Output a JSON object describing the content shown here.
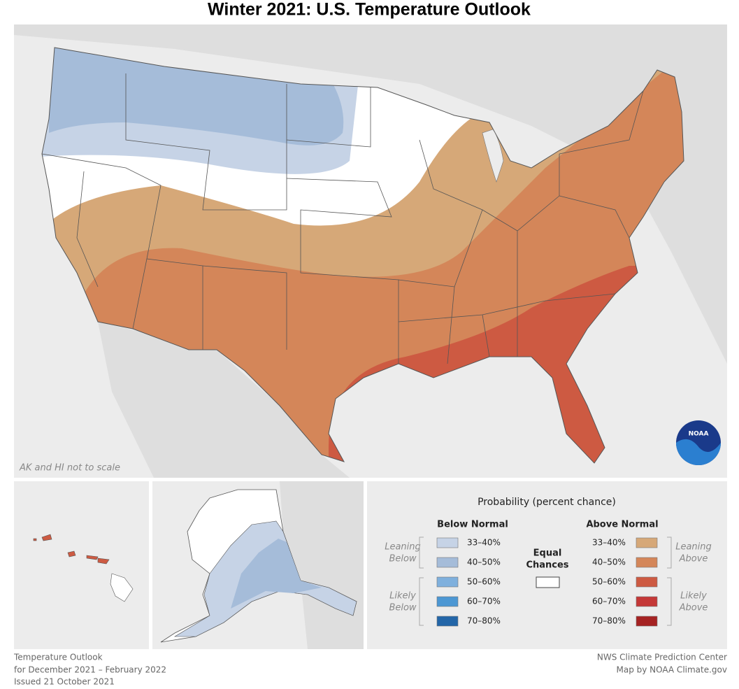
{
  "title": "Winter 2021: U.S. Temperature Outlook",
  "map_note": "AK and HI not to scale",
  "logo_text": "NOAA",
  "legend": {
    "title": "Probability (percent chance)",
    "below": {
      "heading": "Below Normal",
      "bins": [
        "33–40%",
        "40–50%",
        "50–60%",
        "60–70%",
        "70–80%"
      ],
      "colors": [
        "#c6d3e6",
        "#a5bcd9",
        "#7fb0dd",
        "#4c97d3",
        "#2366a8"
      ],
      "leaning": [
        "Leaning",
        "Below"
      ],
      "likely": [
        "Likely",
        "Below"
      ]
    },
    "equal": {
      "label": [
        "Equal",
        "Chances"
      ],
      "color": "#ffffff"
    },
    "above": {
      "heading": "Above Normal",
      "bins": [
        "33–40%",
        "40–50%",
        "50–60%",
        "60–70%",
        "70–80%"
      ],
      "colors": [
        "#d6a878",
        "#d48659",
        "#cd5a42",
        "#c43837",
        "#a52222"
      ],
      "leaning": [
        "Leaning",
        "Above"
      ],
      "likely": [
        "Likely",
        "Above"
      ]
    }
  },
  "footer_left": [
    "Temperature Outlook",
    "for December 2021 – February 2022",
    "Issued 21 October 2021"
  ],
  "footer_right": [
    "NWS Climate Prediction Center",
    "Map by NOAA Climate.gov"
  ]
}
